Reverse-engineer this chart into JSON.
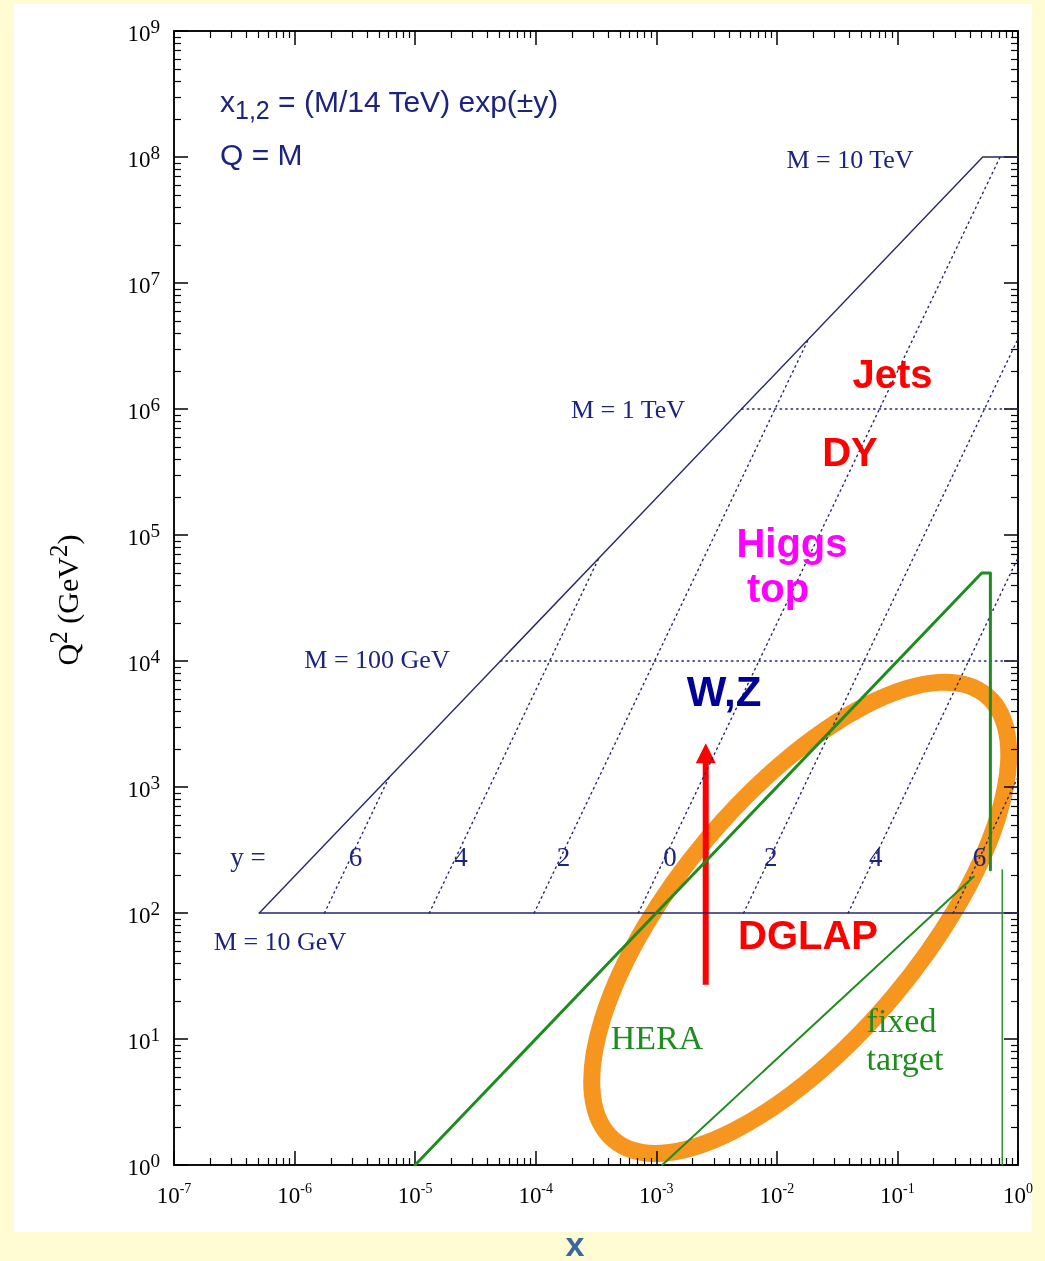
{
  "chart_data": {
    "type": "line",
    "xlabel": "x",
    "ylabel": "Q$^{2}$ (GeV$^{2}$)",
    "log": "xy",
    "marker": "none",
    "xlim": [
      1e-07,
      1
    ],
    "ylim": [
      1,
      1000000000.0
    ],
    "xticks": [
      {
        "value": 1e-07,
        "label": "10$^{-7}$"
      },
      {
        "value": 1e-06,
        "label": "10$^{-6}$"
      },
      {
        "value": 1e-05,
        "label": "10$^{-5}$"
      },
      {
        "value": 0.0001,
        "label": "10$^{-4}$"
      },
      {
        "value": 0.001,
        "label": "10$^{-3}$"
      },
      {
        "value": 0.01,
        "label": "10$^{-2}$"
      },
      {
        "value": 0.1,
        "label": "10$^{-1}$"
      },
      {
        "value": 1,
        "label": "10$^{0}$"
      }
    ],
    "yticks": [
      {
        "value": 1,
        "label": "10$^{0}$"
      },
      {
        "value": 10,
        "label": "10$^{1}$"
      },
      {
        "value": 100,
        "label": "10$^{2}$"
      },
      {
        "value": 1000,
        "label": "10$^{3}$"
      },
      {
        "value": 10000,
        "label": "10$^{4}$"
      },
      {
        "value": 100000,
        "label": "10$^{5}$"
      },
      {
        "value": 1000000,
        "label": "10$^{6}$"
      },
      {
        "value": 10000000,
        "label": "10$^{7}$"
      },
      {
        "value": 100000000,
        "label": "10$^{8}$"
      },
      {
        "value": 1000000000,
        "label": "10$^{9}$"
      }
    ],
    "series": [
      {
        "color": "#26266e",
        "line_style": "solid",
        "x": [
          5.1e-07,
          0.51,
          1
        ],
        "values": [
          100,
          100000000,
          100000000
        ]
      },
      {
        "color": "#26266e",
        "line_style": "solid",
        "x": [
          5.1e-07,
          1
        ],
        "values": [
          100,
          100
        ]
      },
      {
        "color": "#26266e",
        "line_style": "dotted",
        "x": [
          5.1e-05,
          1
        ],
        "values": [
          10000,
          10000
        ]
      },
      {
        "color": "#26266e",
        "line_style": "dotted",
        "x": [
          0.0051,
          1
        ],
        "values": [
          1000000,
          1000000
        ]
      },
      {
        "color": "#26266e",
        "line_style": "dotted",
        "x": [
          1.77e-06,
          6.1e-06
        ],
        "values": [
          100,
          1200
        ]
      },
      {
        "color": "#26266e",
        "line_style": "dotted",
        "x": [
          1.31e-05,
          0.000335
        ],
        "values": [
          100,
          66000
        ]
      },
      {
        "color": "#26266e",
        "line_style": "dotted",
        "x": [
          9.7e-05,
          0.0183
        ],
        "values": [
          100,
          3600000
        ]
      },
      {
        "color": "#26266e",
        "line_style": "dotted",
        "x": [
          0.00071,
          0.71
        ],
        "values": [
          100,
          100000000
        ]
      },
      {
        "color": "#26266e",
        "line_style": "dotted",
        "x": [
          0.0053,
          1
        ],
        "values": [
          100,
          3600000
        ]
      },
      {
        "color": "#26266e",
        "line_style": "dotted",
        "x": [
          0.039,
          1
        ],
        "values": [
          100,
          66000
        ]
      },
      {
        "color": "#26266e",
        "line_style": "dotted",
        "x": [
          0.29,
          1
        ],
        "values": [
          100,
          1200
        ]
      },
      {
        "color": "#1e8c1e",
        "line_style": "solid",
        "x": [
          1e-05,
          0.5,
          0.59,
          0.59
        ],
        "values": [
          1,
          50000,
          50000,
          220
        ]
      },
      {
        "color": "#1e8c1e",
        "line_style": "solid",
        "x": [
          0.00112,
          0.43
        ],
        "values": [
          1,
          195
        ]
      },
      {
        "color": "#1e8c1e",
        "line_style": "solid",
        "x": [
          0.74,
          0.74
        ],
        "values": [
          220,
          1
        ]
      }
    ],
    "annotations": [
      "x$_{1,2}$ = (M/14 TeV) exp(±y)",
      "Q = M",
      "M = 10 TeV",
      "M = 1 TeV",
      "M = 100 GeV",
      "M = 10 GeV",
      "y =",
      {
        "text": "6",
        "x": 3.2e-06,
        "y": 280
      },
      {
        "text": "4",
        "x": 2.4e-05,
        "y": 280
      },
      {
        "text": "2",
        "x": 0.00017,
        "y": 280
      },
      {
        "text": "0",
        "x": 0.0013,
        "y": 280
      },
      {
        "text": "2",
        "x": 0.0089,
        "y": 280
      },
      {
        "text": "4",
        "x": 0.066,
        "y": 280
      },
      {
        "text": "6",
        "x": 0.48,
        "y": 280
      },
      {
        "text": "Jets",
        "x": 0.091,
        "y": 1900000
      },
      "DY",
      "Higgs",
      "top",
      "W,Z",
      "DGLAP",
      "HERA",
      "fixed target"
    ]
  }
}
